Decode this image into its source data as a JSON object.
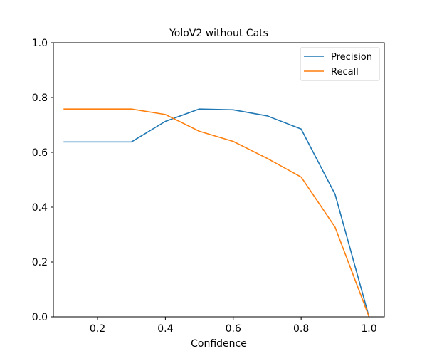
{
  "chart_data": {
    "type": "line",
    "title": "YoloV2 without Cats",
    "xlabel": "Confidence",
    "ylabel": "",
    "xlim": [
      0.07,
      1.045
    ],
    "ylim": [
      0.0,
      1.0
    ],
    "xticks": [
      0.2,
      0.4,
      0.6,
      0.8,
      1.0
    ],
    "xtick_labels": [
      "0.2",
      "0.4",
      "0.6",
      "0.8",
      "1.0"
    ],
    "yticks": [
      0.0,
      0.2,
      0.4,
      0.6,
      0.8,
      1.0
    ],
    "ytick_labels": [
      "0.0",
      "0.2",
      "0.4",
      "0.6",
      "0.8",
      "1.0"
    ],
    "grid": false,
    "legend_position": "top-right",
    "x": [
      0.1,
      0.2,
      0.3,
      0.4,
      0.5,
      0.6,
      0.7,
      0.8,
      0.9,
      1.0
    ],
    "series": [
      {
        "name": "Precision",
        "color": "#1f77b4",
        "values": [
          0.638,
          0.638,
          0.638,
          0.713,
          0.758,
          0.755,
          0.733,
          0.685,
          0.447,
          0.0
        ]
      },
      {
        "name": "Recall",
        "color": "#ff7f0e",
        "values": [
          0.758,
          0.758,
          0.758,
          0.738,
          0.677,
          0.64,
          0.578,
          0.51,
          0.327,
          0.0
        ]
      }
    ]
  }
}
